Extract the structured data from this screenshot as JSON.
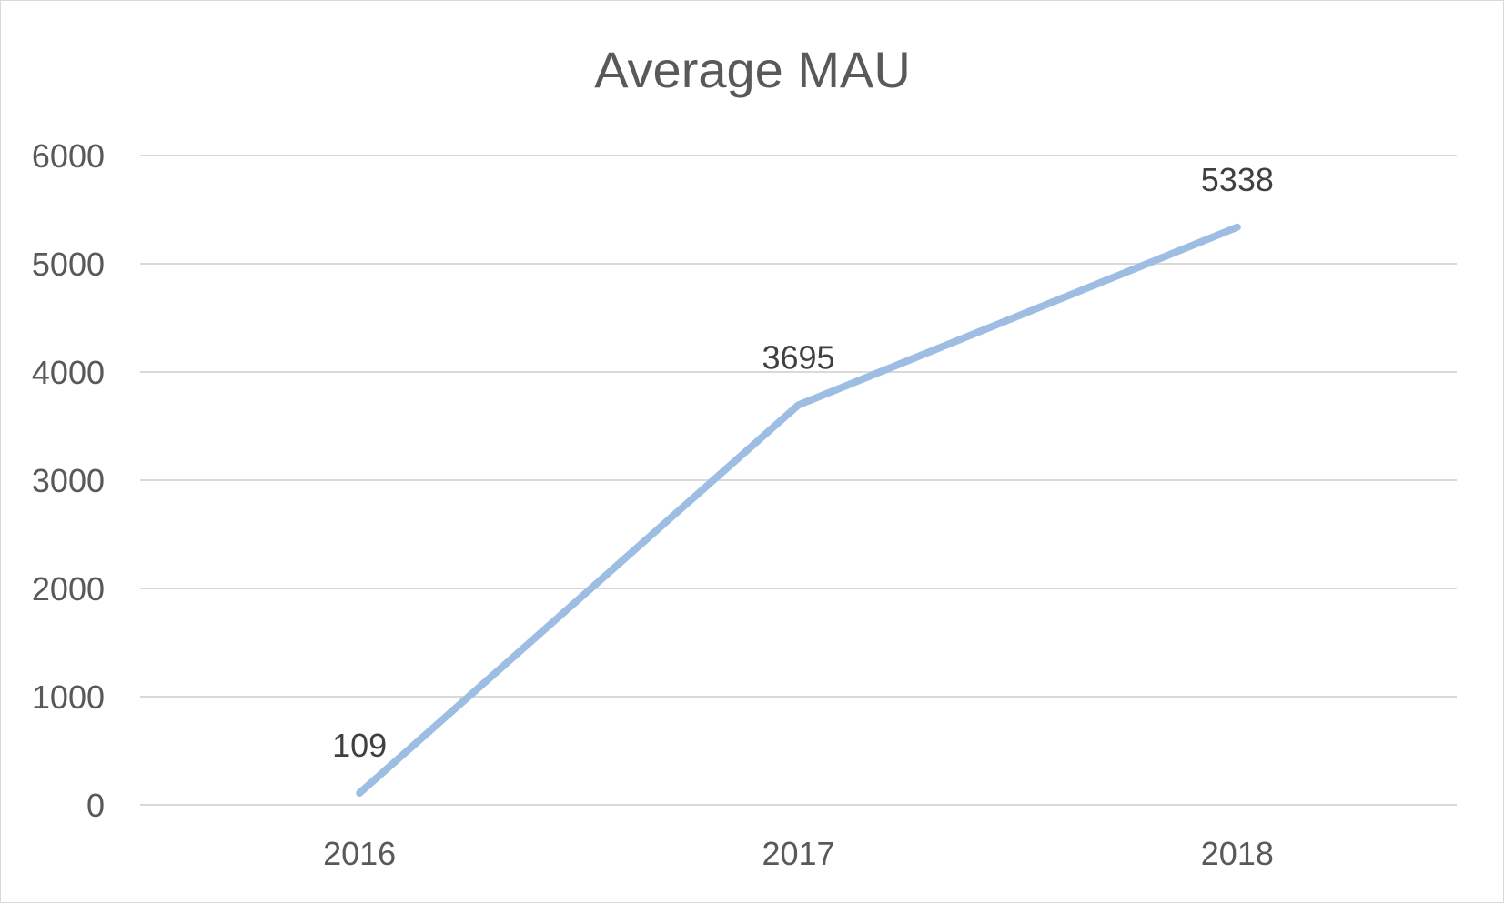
{
  "chart_data": {
    "type": "line",
    "title": "Average MAU",
    "xlabel": "",
    "ylabel": "",
    "categories": [
      "2016",
      "2017",
      "2018"
    ],
    "series": [
      {
        "values": [
          109,
          3695,
          5338
        ]
      }
    ],
    "data_labels": [
      "109",
      "3695",
      "5338"
    ],
    "y_ticks": [
      "0",
      "1000",
      "2000",
      "3000",
      "4000",
      "5000",
      "6000"
    ],
    "ylim": [
      0,
      6000
    ],
    "grid": true,
    "legend": "none",
    "colors": {
      "line": "#9dbde3",
      "grid": "#d9d9d9",
      "text": "#595959"
    }
  }
}
